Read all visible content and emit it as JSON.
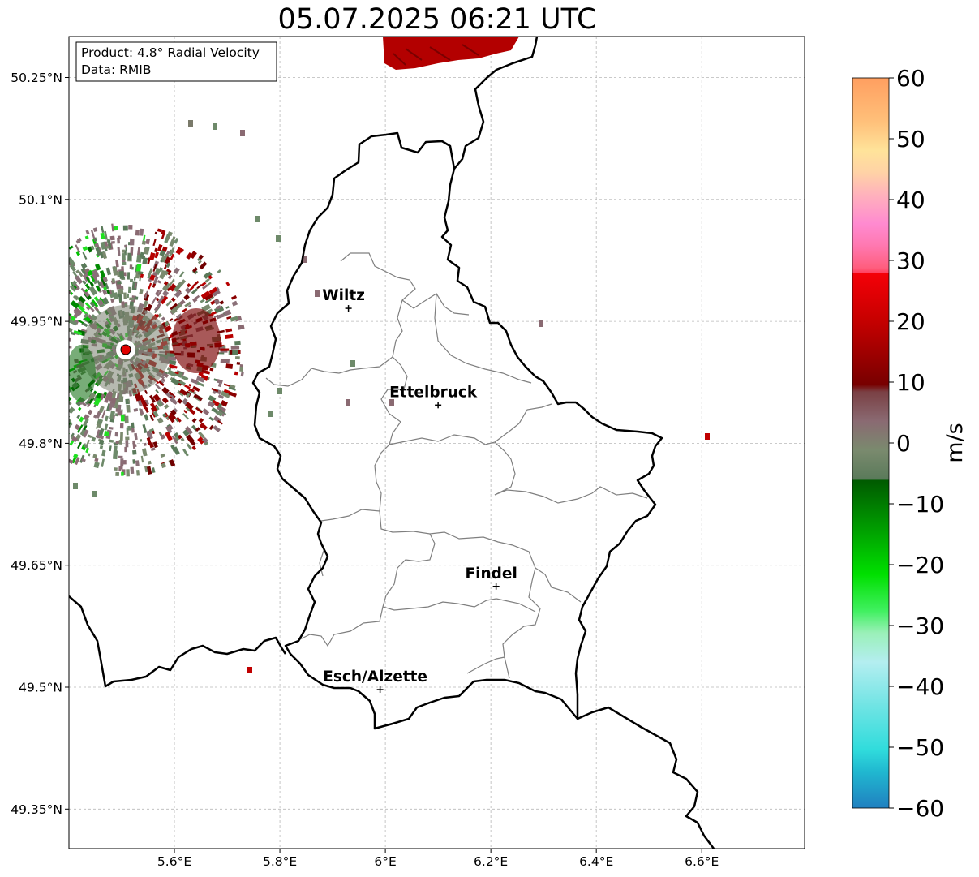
{
  "title": "05.07.2025 06:21 UTC",
  "info_box": {
    "product": "Product: 4.8° Radial Velocity",
    "data": "Data: RMIB"
  },
  "axes": {
    "lon_ticks": [
      "5.6°E",
      "5.8°E",
      "6°E",
      "6.2°E",
      "6.4°E",
      "6.6°E"
    ],
    "lat_ticks": [
      "50.25°N",
      "50.1°N",
      "49.95°N",
      "49.8°N",
      "49.65°N",
      "49.5°N",
      "49.35°N"
    ]
  },
  "cities": [
    {
      "name": "Wiltz",
      "lon": 5.93,
      "lat": 49.966
    },
    {
      "name": "Ettelbruck",
      "lon": 6.1,
      "lat": 49.847
    },
    {
      "name": "Findel",
      "lon": 6.21,
      "lat": 49.624
    },
    {
      "name": "Esch/Alzette",
      "lon": 5.99,
      "lat": 49.497
    }
  ],
  "colorbar": {
    "label": "m/s",
    "min": -60,
    "max": 60,
    "ticks": [
      "60",
      "50",
      "40",
      "30",
      "20",
      "10",
      "0",
      "−10",
      "−20",
      "−30",
      "−40",
      "−50",
      "−60"
    ]
  },
  "colors": {
    "border": "#000000",
    "cantons": "#808080",
    "grid": "#b0b0b0",
    "radar_site": "#e00000"
  }
}
